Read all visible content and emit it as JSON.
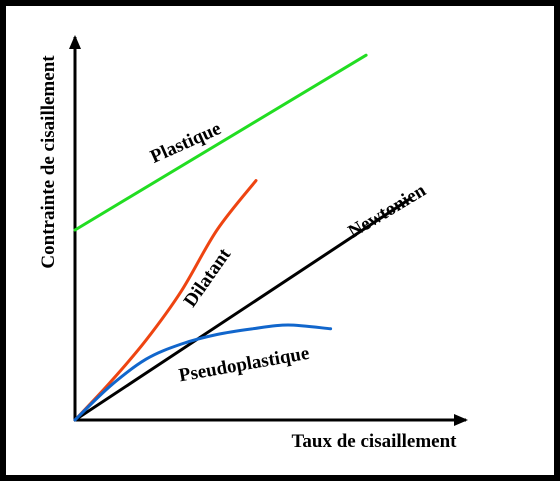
{
  "chart_data": {
    "type": "line",
    "xlabel": "Taux de cisaillement",
    "ylabel": "Contrainte de cisaillement",
    "xlim": [
      0,
      10
    ],
    "ylim": [
      0,
      10
    ],
    "grid": false,
    "legend": "none",
    "axis_ticks": false,
    "series": [
      {
        "name": "Plastique",
        "color": "#22dd22",
        "x": [
          0,
          8.2
        ],
        "y": [
          5.0,
          9.6
        ]
      },
      {
        "name": "Dilatant",
        "color": "#ee4411",
        "x": [
          0,
          1.0,
          2.0,
          3.0,
          4.0,
          5.1
        ],
        "y": [
          0,
          1.0,
          2.1,
          3.4,
          5.0,
          6.3
        ]
      },
      {
        "name": "Newtonien",
        "color": "#000000",
        "x": [
          0,
          9.4
        ],
        "y": [
          0,
          5.8
        ]
      },
      {
        "name": "Pseudoplastique",
        "color": "#1166cc",
        "x": [
          0,
          1.0,
          2.0,
          3.0,
          4.0,
          5.0,
          6.0,
          7.2
        ],
        "y": [
          0,
          0.9,
          1.6,
          2.0,
          2.25,
          2.4,
          2.5,
          2.4
        ]
      }
    ]
  }
}
